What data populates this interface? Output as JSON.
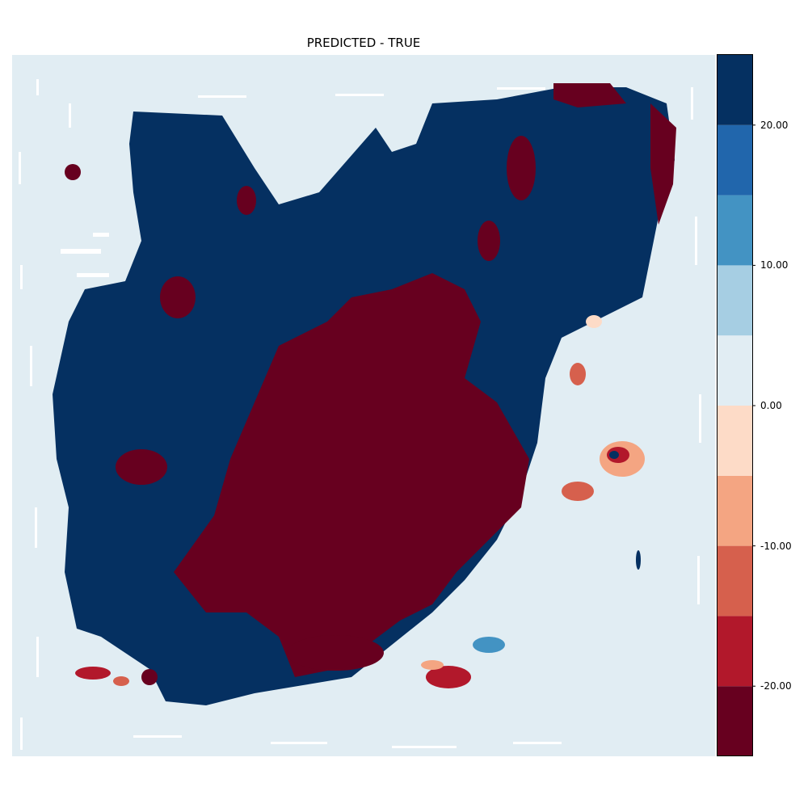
{
  "chart_data": {
    "type": "heatmap",
    "title": "PREDICTED - TRUE",
    "xlabel": "",
    "ylabel": "",
    "colorbar": {
      "range": [
        -25,
        25
      ],
      "levels": [
        -25,
        -20,
        -15,
        -10,
        -5,
        0,
        5,
        10,
        15,
        20,
        25
      ],
      "colors": [
        "#67001f",
        "#b2182b",
        "#d6604d",
        "#f4a582",
        "#fddbc7",
        "#e1edf3",
        "#a6cee3",
        "#4393c3",
        "#2166ac",
        "#053061"
      ],
      "tick_values": [
        -20,
        -10,
        0,
        10,
        20
      ],
      "tick_labels": [
        "-20.00",
        "-10.00",
        "0.00",
        "10.00",
        "20.00"
      ]
    },
    "background_value_bin": "0 to 5",
    "description_regions": [
      {
        "region": "landmass-majority",
        "value_bin": "20 to 25"
      },
      {
        "region": "central-diagonal-band",
        "value_bin": "-25 to -20"
      },
      {
        "region": "east-coastal-fringe",
        "value_bin": "-15 to 0"
      }
    ]
  }
}
